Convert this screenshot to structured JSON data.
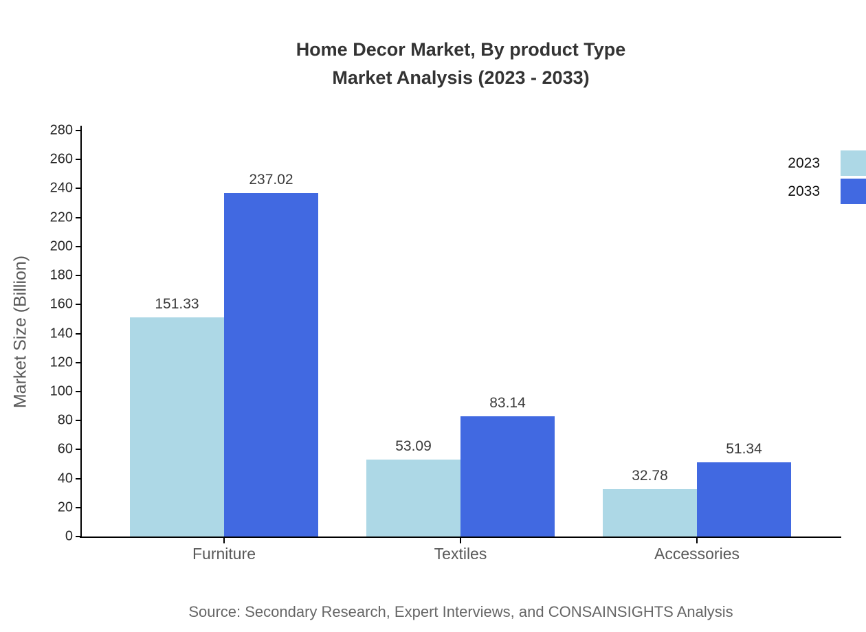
{
  "title": {
    "line1": "Home Decor Market, By product Type",
    "line2": "Market Analysis (2023 - 2033)"
  },
  "source": "Source: Secondary Research, Expert Interviews, and CONSAINSIGHTS Analysis",
  "chart_data": {
    "type": "bar",
    "title": "Home Decor Market, By product Type Market Analysis (2023 - 2033)",
    "categories": [
      "Furniture",
      "Textiles",
      "Accessories"
    ],
    "series": [
      {
        "name": "2023",
        "color": "#ADD8E6",
        "values": [
          151.33,
          53.09,
          32.78
        ]
      },
      {
        "name": "2033",
        "color": "#4169E1",
        "values": [
          237.02,
          83.14,
          51.34
        ]
      }
    ],
    "xlabel": "",
    "ylabel": "Market Size (Billion)",
    "ylim": [
      0,
      280
    ],
    "ytick_step": 20,
    "grid": false,
    "legend_position": "top-right",
    "value_labels": true,
    "value_label_decimals": 2
  },
  "colors": {
    "series_2023": "#ADD8E6",
    "series_2033": "#4169E1",
    "axis": "#000000",
    "title_text": "#333333",
    "axis_label_text": "#595959",
    "tick_label_text": "#262626",
    "value_label_text": "#3a3a3a",
    "source_text": "#666666",
    "background": "#ffffff"
  }
}
